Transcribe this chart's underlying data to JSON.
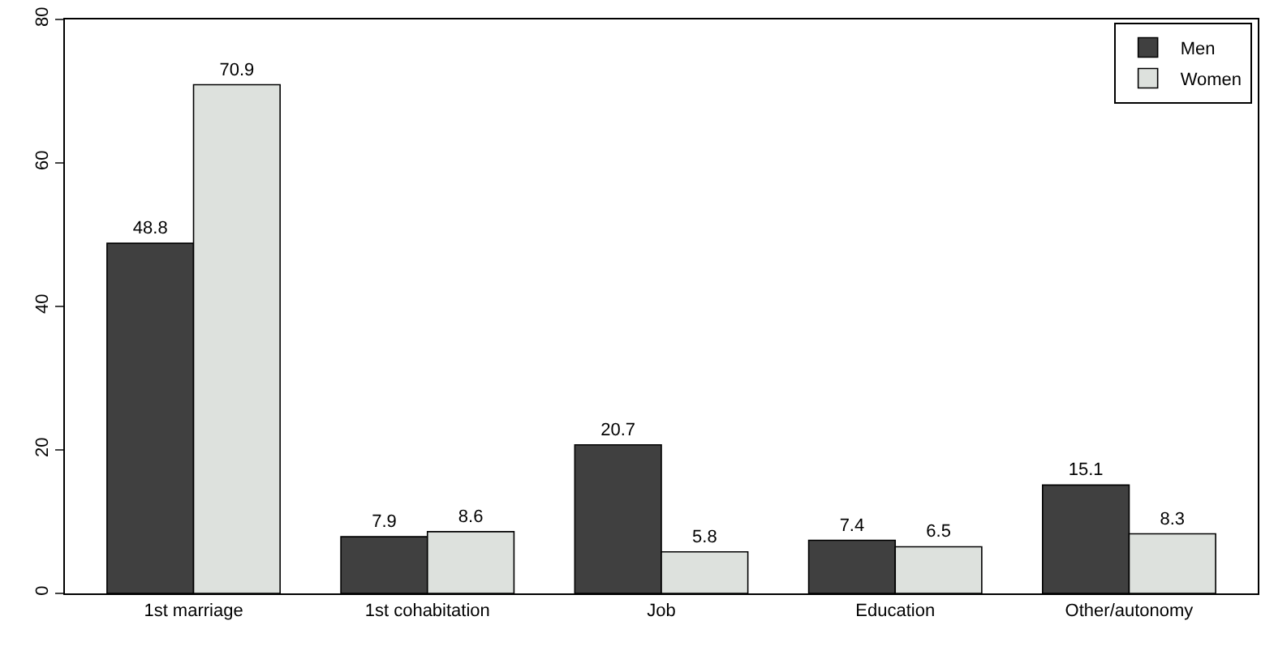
{
  "chart_data": {
    "type": "bar",
    "categories": [
      "1st marriage",
      "1st cohabitation",
      "Job",
      "Education",
      "Other/autonomy"
    ],
    "series": [
      {
        "name": "Men",
        "color": "#404040",
        "values": [
          48.8,
          7.9,
          20.7,
          7.4,
          15.1
        ]
      },
      {
        "name": "Women",
        "color": "#dde1dd",
        "values": [
          70.9,
          8.6,
          5.8,
          6.5,
          8.3
        ]
      }
    ],
    "ylim": [
      0,
      80
    ],
    "yticks": [
      0,
      20,
      40,
      60,
      80
    ],
    "data_labels": true,
    "legend": "top right"
  }
}
